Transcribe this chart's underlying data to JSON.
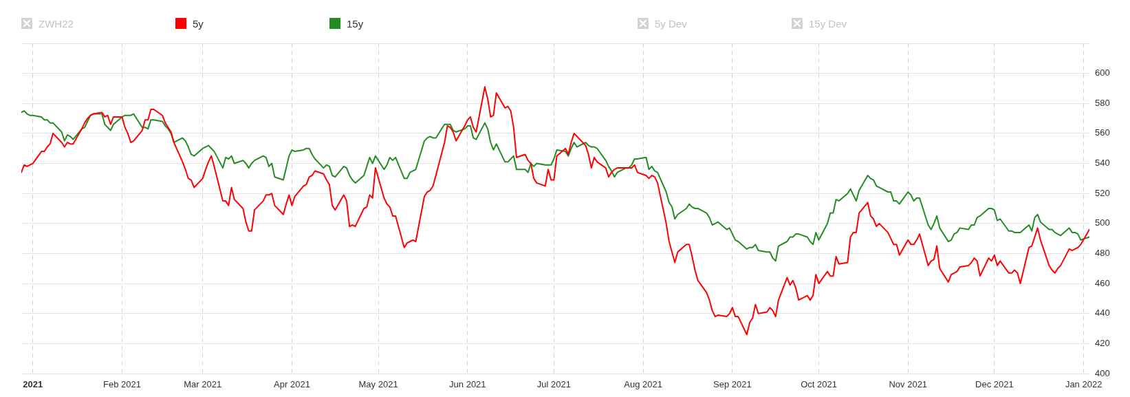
{
  "chart_data": {
    "type": "line",
    "x": [
      "2020-12-28",
      "2020-12-29",
      "2020-12-30",
      "2020-12-31",
      "2021-01-01",
      "2021-01-04",
      "2021-01-05",
      "2021-01-06",
      "2021-01-07",
      "2021-01-08",
      "2021-01-11",
      "2021-01-12",
      "2021-01-13",
      "2021-01-14",
      "2021-01-15",
      "2021-01-18",
      "2021-01-19",
      "2021-01-20",
      "2021-01-21",
      "2021-01-22",
      "2021-01-25",
      "2021-01-26",
      "2021-01-27",
      "2021-01-28",
      "2021-01-29",
      "2021-02-01",
      "2021-02-02",
      "2021-02-03",
      "2021-02-04",
      "2021-02-05",
      "2021-02-08",
      "2021-02-09",
      "2021-02-10",
      "2021-02-11",
      "2021-02-12",
      "2021-02-15",
      "2021-02-16",
      "2021-02-17",
      "2021-02-18",
      "2021-02-19",
      "2021-02-22",
      "2021-02-23",
      "2021-02-24",
      "2021-02-25",
      "2021-02-26",
      "2021-03-01",
      "2021-03-02",
      "2021-03-03",
      "2021-03-04",
      "2021-03-05",
      "2021-03-08",
      "2021-03-09",
      "2021-03-10",
      "2021-03-11",
      "2021-03-12",
      "2021-03-15",
      "2021-03-16",
      "2021-03-17",
      "2021-03-18",
      "2021-03-19",
      "2021-03-22",
      "2021-03-23",
      "2021-03-24",
      "2021-03-25",
      "2021-03-26",
      "2021-03-29",
      "2021-03-30",
      "2021-03-31",
      "2021-04-01",
      "2021-04-02",
      "2021-04-05",
      "2021-04-06",
      "2021-04-07",
      "2021-04-08",
      "2021-04-09",
      "2021-04-12",
      "2021-04-13",
      "2021-04-14",
      "2021-04-15",
      "2021-04-16",
      "2021-04-19",
      "2021-04-20",
      "2021-04-21",
      "2021-04-22",
      "2021-04-23",
      "2021-04-26",
      "2021-04-27",
      "2021-04-28",
      "2021-04-29",
      "2021-04-30",
      "2021-05-03",
      "2021-05-04",
      "2021-05-05",
      "2021-05-06",
      "2021-05-07",
      "2021-05-10",
      "2021-05-11",
      "2021-05-12",
      "2021-05-13",
      "2021-05-14",
      "2021-05-17",
      "2021-05-18",
      "2021-05-19",
      "2021-05-20",
      "2021-05-21",
      "2021-05-24",
      "2021-05-25",
      "2021-05-26",
      "2021-05-27",
      "2021-05-28",
      "2021-05-31",
      "2021-06-01",
      "2021-06-02",
      "2021-06-03",
      "2021-06-04",
      "2021-06-07",
      "2021-06-08",
      "2021-06-09",
      "2021-06-10",
      "2021-06-11",
      "2021-06-14",
      "2021-06-15",
      "2021-06-16",
      "2021-06-17",
      "2021-06-18",
      "2021-06-21",
      "2021-06-22",
      "2021-06-23",
      "2021-06-24",
      "2021-06-25",
      "2021-06-28",
      "2021-06-29",
      "2021-06-30",
      "2021-07-01",
      "2021-07-02",
      "2021-07-05",
      "2021-07-06",
      "2021-07-07",
      "2021-07-08",
      "2021-07-09",
      "2021-07-12",
      "2021-07-13",
      "2021-07-14",
      "2021-07-15",
      "2021-07-16",
      "2021-07-19",
      "2021-07-20",
      "2021-07-21",
      "2021-07-22",
      "2021-07-23",
      "2021-07-26",
      "2021-07-27",
      "2021-07-28",
      "2021-07-29",
      "2021-07-30",
      "2021-08-02",
      "2021-08-03",
      "2021-08-04",
      "2021-08-05",
      "2021-08-06",
      "2021-08-09",
      "2021-08-10",
      "2021-08-11",
      "2021-08-12",
      "2021-08-13",
      "2021-08-16",
      "2021-08-17",
      "2021-08-18",
      "2021-08-19",
      "2021-08-20",
      "2021-08-23",
      "2021-08-24",
      "2021-08-25",
      "2021-08-26",
      "2021-08-27",
      "2021-08-30",
      "2021-08-31",
      "2021-09-01",
      "2021-09-02",
      "2021-09-03",
      "2021-09-06",
      "2021-09-07",
      "2021-09-08",
      "2021-09-09",
      "2021-09-10",
      "2021-09-13",
      "2021-09-14",
      "2021-09-15",
      "2021-09-16",
      "2021-09-17",
      "2021-09-20",
      "2021-09-21",
      "2021-09-22",
      "2021-09-23",
      "2021-09-24",
      "2021-09-27",
      "2021-09-28",
      "2021-09-29",
      "2021-09-30",
      "2021-10-01",
      "2021-10-04",
      "2021-10-05",
      "2021-10-06",
      "2021-10-07",
      "2021-10-08",
      "2021-10-11",
      "2021-10-12",
      "2021-10-13",
      "2021-10-14",
      "2021-10-15",
      "2021-10-18",
      "2021-10-19",
      "2021-10-20",
      "2021-10-21",
      "2021-10-22",
      "2021-10-25",
      "2021-10-26",
      "2021-10-27",
      "2021-10-28",
      "2021-10-29",
      "2021-11-01",
      "2021-11-02",
      "2021-11-03",
      "2021-11-04",
      "2021-11-05",
      "2021-11-08",
      "2021-11-09",
      "2021-11-10",
      "2021-11-11",
      "2021-11-12",
      "2021-11-15",
      "2021-11-16",
      "2021-11-17",
      "2021-11-18",
      "2021-11-19",
      "2021-11-22",
      "2021-11-23",
      "2021-11-24",
      "2021-11-25",
      "2021-11-26",
      "2021-11-29",
      "2021-11-30",
      "2021-12-01",
      "2021-12-02",
      "2021-12-03",
      "2021-12-06",
      "2021-12-07",
      "2021-12-08",
      "2021-12-09",
      "2021-12-10",
      "2021-12-13",
      "2021-12-14",
      "2021-12-15",
      "2021-12-16",
      "2021-12-17",
      "2021-12-20",
      "2021-12-21",
      "2021-12-22",
      "2021-12-23",
      "2021-12-24",
      "2021-12-27",
      "2021-12-28",
      "2021-12-29",
      "2021-12-30",
      "2021-12-31",
      "2022-01-03"
    ],
    "series": [
      {
        "name": "5y",
        "color": "#ff0000",
        "values": [
          534,
          539,
          538,
          539,
          540,
          548,
          548,
          551,
          553,
          560,
          554,
          551,
          554,
          553,
          553,
          563,
          567,
          570,
          572,
          573,
          574,
          571,
          572,
          566,
          571,
          571,
          564,
          560,
          554,
          555,
          562,
          569,
          569,
          576,
          576,
          572,
          567,
          564,
          561,
          554,
          541,
          536,
          530,
          529,
          524,
          530,
          536,
          541,
          545,
          538,
          515,
          515,
          512,
          524,
          516,
          510,
          501,
          495,
          495,
          509,
          515,
          519,
          519,
          520,
          512,
          506,
          513,
          519,
          512,
          518,
          525,
          526,
          531,
          532,
          535,
          533,
          529,
          526,
          512,
          509,
          519,
          515,
          498,
          499,
          498,
          510,
          511,
          519,
          517,
          537,
          517,
          513,
          511,
          505,
          505,
          484,
          487,
          488,
          489,
          488,
          518,
          521,
          522,
          525,
          532,
          554,
          565,
          564,
          561,
          555,
          565,
          569,
          571,
          564,
          561,
          591,
          583,
          571,
          572,
          587,
          577,
          578,
          575,
          564,
          544,
          546,
          542,
          540,
          530,
          527,
          525,
          536,
          529,
          529,
          545,
          550,
          546,
          554,
          560,
          558,
          552,
          546,
          537,
          544,
          541,
          537,
          531,
          534,
          536,
          537,
          537,
          537,
          537,
          539,
          534,
          532,
          530,
          532,
          531,
          527,
          500,
          488,
          481,
          474,
          481,
          486,
          486,
          478,
          469,
          462,
          454,
          449,
          442,
          438,
          439,
          438,
          440,
          444,
          438,
          438,
          426,
          434,
          437,
          446,
          440,
          441,
          444,
          442,
          438,
          449,
          464,
          459,
          462,
          457,
          449,
          452,
          449,
          452,
          466,
          460,
          468,
          465,
          465,
          478,
          473,
          474,
          491,
          494,
          494,
          507,
          514,
          505,
          503,
          498,
          500,
          494,
          490,
          486,
          486,
          479,
          489,
          486,
          486,
          489,
          493,
          472,
          475,
          476,
          485,
          470,
          461,
          466,
          467,
          468,
          471,
          472,
          474,
          477,
          475,
          465,
          477,
          475,
          479,
          472,
          475,
          467,
          467,
          469,
          467,
          460,
          484,
          485,
          491,
          497,
          489,
          472,
          469,
          467,
          470,
          472,
          483,
          482,
          483,
          484,
          486,
          496
        ]
      },
      {
        "name": "15y",
        "color": "#228b22",
        "values": [
          574,
          575,
          573,
          572,
          572,
          571,
          569,
          569,
          567,
          567,
          561,
          555,
          559,
          558,
          556,
          563,
          564,
          568,
          572,
          573,
          573,
          566,
          564,
          562,
          566,
          571,
          572,
          572,
          572,
          573,
          564,
          564,
          563,
          569,
          569,
          568,
          565,
          563,
          560,
          554,
          557,
          555,
          551,
          546,
          545,
          550,
          551,
          552,
          550,
          548,
          537,
          544,
          543,
          545,
          540,
          542,
          540,
          537,
          540,
          542,
          545,
          544,
          538,
          540,
          531,
          529,
          537,
          545,
          549,
          548,
          549,
          550,
          550,
          546,
          543,
          537,
          539,
          538,
          532,
          531,
          538,
          537,
          532,
          529,
          527,
          532,
          538,
          544,
          540,
          545,
          536,
          539,
          544,
          542,
          544,
          530,
          530,
          534,
          535,
          536,
          555,
          557,
          558,
          557,
          557,
          566,
          566,
          566,
          562,
          561,
          563,
          565,
          565,
          557,
          556,
          567,
          563,
          554,
          549,
          553,
          541,
          541,
          543,
          545,
          536,
          536,
          534,
          540,
          538,
          540,
          539,
          539,
          539,
          543,
          549,
          548,
          545,
          550,
          554,
          551,
          554,
          552,
          551,
          551,
          550,
          542,
          538,
          535,
          531,
          534,
          537,
          537,
          539,
          543,
          543,
          544,
          536,
          538,
          535,
          534,
          521,
          514,
          511,
          503,
          506,
          510,
          513,
          511,
          510,
          510,
          507,
          504,
          499,
          500,
          501,
          496,
          497,
          493,
          489,
          488,
          483,
          484,
          484,
          486,
          482,
          481,
          481,
          477,
          475,
          485,
          488,
          491,
          491,
          493,
          493,
          491,
          488,
          486,
          494,
          489,
          500,
          507,
          507,
          516,
          515,
          520,
          523,
          519,
          515,
          522,
          532,
          530,
          529,
          525,
          524,
          521,
          521,
          515,
          515,
          513,
          521,
          519,
          515,
          517,
          517,
          499,
          496,
          500,
          505,
          497,
          488,
          489,
          493,
          494,
          497,
          496,
          499,
          499,
          504,
          505,
          510,
          510,
          509,
          502,
          503,
          495,
          495,
          494,
          494,
          494,
          499,
          495,
          504,
          506,
          501,
          496,
          496,
          494,
          493,
          492,
          497,
          494,
          494,
          493,
          489,
          491
        ]
      }
    ],
    "xlim": [
      "2020-12-28",
      "2022-01-03"
    ],
    "xticks": [
      {
        "value": "2021-01-01",
        "label": "2021"
      },
      {
        "value": "2021-02-01",
        "label": "Feb 2021"
      },
      {
        "value": "2021-03-01",
        "label": "Mar 2021"
      },
      {
        "value": "2021-04-01",
        "label": "Apr 2021"
      },
      {
        "value": "2021-05-01",
        "label": "May 2021"
      },
      {
        "value": "2021-06-01",
        "label": "Jun 2021"
      },
      {
        "value": "2021-07-01",
        "label": "Jul 2021"
      },
      {
        "value": "2021-08-01",
        "label": "Aug 2021"
      },
      {
        "value": "2021-09-01",
        "label": "Sep 2021"
      },
      {
        "value": "2021-10-01",
        "label": "Oct 2021"
      },
      {
        "value": "2021-11-01",
        "label": "Nov 2021"
      },
      {
        "value": "2021-12-01",
        "label": "Dec 2021"
      },
      {
        "value": "2022-01-01",
        "label": "Jan 2022"
      }
    ],
    "ylim": [
      400,
      620
    ],
    "yticks": [
      400,
      420,
      440,
      460,
      480,
      500,
      520,
      540,
      560,
      580,
      600,
      {
        "value": 620,
        "label": null
      }
    ],
    "grid": true,
    "legend": "top",
    "annotations": [
      "ZWH22",
      "5y Dev",
      "15y Dev"
    ]
  }
}
